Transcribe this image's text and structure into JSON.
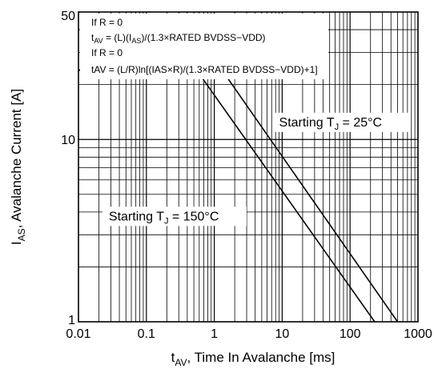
{
  "chart_data": {
    "type": "line",
    "xscale": "log",
    "yscale": "log",
    "xlim": [
      0.01,
      1000
    ],
    "ylim": [
      1,
      50
    ],
    "grid": true,
    "xlabel": {
      "main": "t",
      "sub": "AV",
      "rest": ", Time In Avalanche [ms]"
    },
    "ylabel": {
      "main": "I",
      "sub": "AS",
      "rest": ", Avalanche Current [A]"
    },
    "x_ticks": [
      {
        "value": 0.01,
        "label": "0.01"
      },
      {
        "value": 0.1,
        "label": "0.1"
      },
      {
        "value": 1,
        "label": "1"
      },
      {
        "value": 10,
        "label": "10"
      },
      {
        "value": 100,
        "label": "100"
      },
      {
        "value": 1000,
        "label": "1000"
      }
    ],
    "y_ticks": [
      {
        "value": 1,
        "label": "1"
      },
      {
        "value": 10,
        "label": "10"
      },
      {
        "value": 50,
        "label": "50"
      }
    ],
    "annotation_lines": [
      {
        "parts": [
          {
            "t": "If R = 0"
          }
        ]
      },
      {
        "parts": [
          {
            "t": "t"
          },
          {
            "t": "AV",
            "sub": true
          },
          {
            "t": " = (L)(I"
          },
          {
            "t": "AS",
            "sub": true
          },
          {
            "t": ")/(1.3×RATED BVDSS−VDD)"
          }
        ]
      },
      {
        "parts": [
          {
            "t": "If R = 0"
          }
        ]
      },
      {
        "parts": [
          {
            "t": "tAV = (L/R)ln[(IAS×R)/(1.3×RATED BVDSS−VDD)+1]"
          }
        ]
      }
    ],
    "series": [
      {
        "label": {
          "pre": "Starting T",
          "sub": "J",
          "post": " = 25°C"
        },
        "points": [
          [
            0.01,
            24
          ],
          [
            1.3,
            24
          ],
          [
            500,
            1
          ]
        ]
      },
      {
        "label": {
          "pre": "Starting T",
          "sub": "J",
          "post": " = 150°C"
        },
        "points": [
          [
            0.01,
            24
          ],
          [
            0.55,
            24
          ],
          [
            230,
            1
          ]
        ]
      }
    ]
  }
}
